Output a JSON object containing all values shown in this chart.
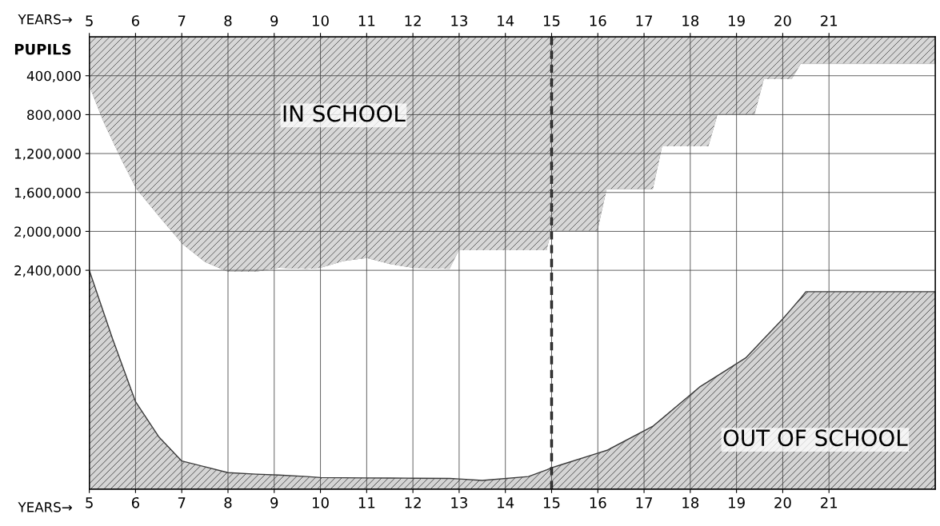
{
  "chart_data": {
    "type": "area",
    "stacked": true,
    "xlabel": "YEARS→",
    "x2label": "YEARS→",
    "ylabel": "PUPILS",
    "xlim": [
      5,
      23.3
    ],
    "xticks": [
      5,
      6,
      7,
      8,
      9,
      10,
      11,
      12,
      13,
      14,
      15,
      16,
      17,
      18,
      19,
      20,
      21
    ],
    "x2lim": [
      5,
      23.3
    ],
    "x2ticks": [
      5,
      6,
      7,
      8,
      9,
      10,
      11,
      12,
      13,
      14,
      15,
      16,
      17,
      18,
      19,
      20,
      21
    ],
    "ylim": [
      4650000,
      0
    ],
    "yticks": [
      {
        "value": 400000,
        "label": "400,000"
      },
      {
        "value": 800000,
        "label": "800,000"
      },
      {
        "value": 1200000,
        "label": "1,200,000"
      },
      {
        "value": 1600000,
        "label": "1,600,000"
      },
      {
        "value": 2000000,
        "label": "2,000,000"
      },
      {
        "value": 2400000,
        "label": "2,400,000"
      }
    ],
    "grid": true,
    "legend": false,
    "ref_lines": [
      {
        "axis": "x",
        "value": 15,
        "color": "#222222",
        "line_style": "dashed"
      }
    ],
    "x": [
      5,
      5.3,
      5.5,
      5.7,
      6,
      6.5,
      7,
      7.5,
      8,
      8.6,
      9.1,
      9.7,
      10,
      10.5,
      11,
      11.5,
      12,
      12.8,
      13,
      13.5,
      14.5,
      14.9,
      15,
      15.2,
      16,
      16.2,
      17.2,
      17.4,
      18.2,
      18.4,
      18.6,
      19.2,
      19.4,
      19.6,
      20,
      20.2,
      20.4,
      20.5,
      23.3
    ],
    "series": [
      {
        "name": "IN SCHOOL",
        "color": "#4a4a4a",
        "values": [
          520000,
          880000,
          1080000,
          1280000,
          1560000,
          1850000,
          2130000,
          2320000,
          2420000,
          2420000,
          2380000,
          2390000,
          2380000,
          2310000,
          2280000,
          2340000,
          2380000,
          2390000,
          2200000,
          2200000,
          2200000,
          2200000,
          2000000,
          2000000,
          2000000,
          1570000,
          1570000,
          1130000,
          1130000,
          1130000,
          800000,
          800000,
          800000,
          440000,
          440000,
          440000,
          280000,
          280000,
          280000
        ]
      },
      {
        "color": "#ffffff",
        "values": [
          1880000,
          1940000,
          2020000,
          2080000,
          2190000,
          2260000,
          2230000,
          2100000,
          2060000,
          2075000,
          2125000,
          2130000,
          2150000,
          2222000,
          2254000,
          2196000,
          2157000,
          2150000,
          2345000,
          2360000,
          2320000,
          2250000,
          2430000,
          2400000,
          2280000,
          2680000,
          2430000,
          2790000,
          2470000,
          2410000,
          2680000,
          2500000,
          2400000,
          2660000,
          2460000,
          2350000,
          2400000,
          2340000,
          2340000
        ]
      },
      {
        "name": "OUT OF SCHOOL",
        "color": "#3a3a3a",
        "values": [
          2250000,
          1830000,
          1550000,
          1290000,
          900000,
          540000,
          290000,
          230000,
          170000,
          155000,
          145000,
          130000,
          120000,
          118000,
          116000,
          114000,
          113000,
          110000,
          105000,
          90000,
          130000,
          200000,
          220000,
          250000,
          370000,
          400000,
          650000,
          730000,
          1050000,
          1110000,
          1170000,
          1350000,
          1450000,
          1550000,
          1750000,
          1860000,
          1970000,
          2030000,
          2030000
        ]
      }
    ]
  }
}
